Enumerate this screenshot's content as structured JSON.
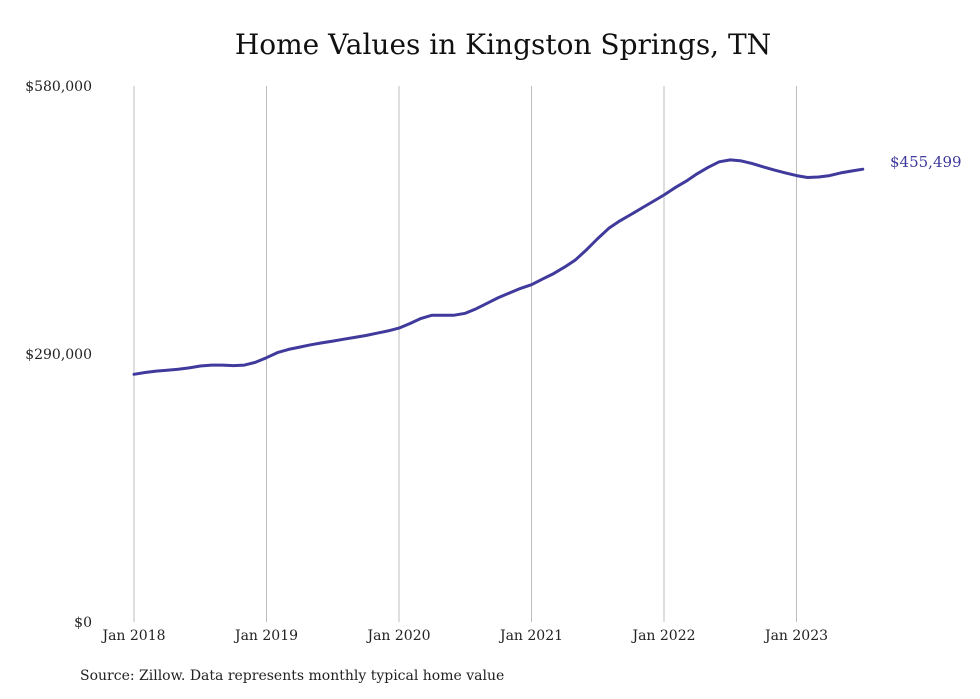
{
  "chart_data": {
    "type": "line",
    "title": "Home Values in Kingston Springs, TN",
    "xlabel": "",
    "ylabel": "",
    "ylim": [
      0,
      580000
    ],
    "yticks": [
      {
        "value": 0,
        "label": "$0"
      },
      {
        "value": 290000,
        "label": "$290,000"
      },
      {
        "value": 580000,
        "label": "$580,000"
      }
    ],
    "xticks": [
      "Jan 2018",
      "Jan 2019",
      "Jan 2020",
      "Jan 2021",
      "Jan 2022",
      "Jan 2023"
    ],
    "grid": "vertical",
    "series": [
      {
        "color": "#3f3a9c",
        "x": [
          "2018-01",
          "2018-02",
          "2018-03",
          "2018-04",
          "2018-05",
          "2018-06",
          "2018-07",
          "2018-08",
          "2018-09",
          "2018-10",
          "2018-11",
          "2018-12",
          "2019-01",
          "2019-02",
          "2019-03",
          "2019-04",
          "2019-05",
          "2019-06",
          "2019-07",
          "2019-08",
          "2019-09",
          "2019-10",
          "2019-11",
          "2019-12",
          "2020-01",
          "2020-02",
          "2020-03",
          "2020-04",
          "2020-05",
          "2020-06",
          "2020-07",
          "2020-08",
          "2020-09",
          "2020-10",
          "2020-11",
          "2020-12",
          "2021-01",
          "2021-02",
          "2021-03",
          "2021-04",
          "2021-05",
          "2021-06",
          "2021-07",
          "2021-08",
          "2021-09",
          "2021-10",
          "2021-11",
          "2021-12",
          "2022-01",
          "2022-02",
          "2022-03",
          "2022-04",
          "2022-05",
          "2022-06",
          "2022-07",
          "2022-08",
          "2022-09",
          "2022-10",
          "2022-11",
          "2022-12",
          "2023-01",
          "2023-02",
          "2023-03",
          "2023-04",
          "2023-05",
          "2023-06",
          "2023-07",
          "2023-08"
        ],
        "values": [
          268000,
          270000,
          271500,
          272500,
          273500,
          275000,
          277000,
          278000,
          278000,
          277500,
          278000,
          281000,
          286000,
          291500,
          295000,
          297500,
          300000,
          302000,
          304000,
          306000,
          308000,
          310000,
          312500,
          315000,
          318000,
          323000,
          328500,
          332000,
          332000,
          332000,
          334000,
          339000,
          345000,
          351000,
          356000,
          361000,
          365000,
          371000,
          377000,
          384000,
          392000,
          403000,
          415000,
          426000,
          434000,
          441000,
          448000,
          455000,
          462000,
          470000,
          477000,
          485000,
          492000,
          498000,
          500000,
          499000,
          496000,
          492500,
          489000,
          486000,
          483000,
          481000,
          481500,
          483000,
          486000,
          488000,
          490000,
          455499
        ]
      }
    ],
    "end_label": "$455,499"
  },
  "footer": {
    "source": "Source: Zillow. Data represents monthly typical home value"
  }
}
